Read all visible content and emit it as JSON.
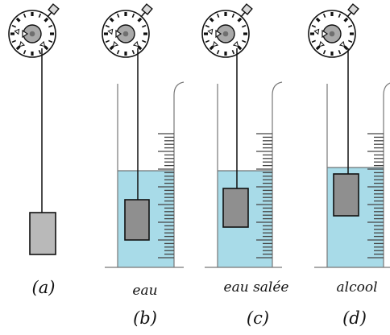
{
  "figure": {
    "panels": [
      {
        "id": "a",
        "label": "(a)",
        "liquid": "",
        "immersed": false
      },
      {
        "id": "b",
        "label": "(b)",
        "liquid": "eau",
        "immersed": true
      },
      {
        "id": "c",
        "label": "(c)",
        "liquid": "eau salée",
        "immersed": true
      },
      {
        "id": "d",
        "label": "(d)",
        "liquid": "alcool",
        "immersed": true
      }
    ],
    "colors": {
      "liquid": "#a8dbe8",
      "block": "#b9b9b9",
      "outline": "#111111"
    },
    "icons": [
      "dial-dynamometer-icon",
      "graduated-cylinder-icon"
    ]
  }
}
